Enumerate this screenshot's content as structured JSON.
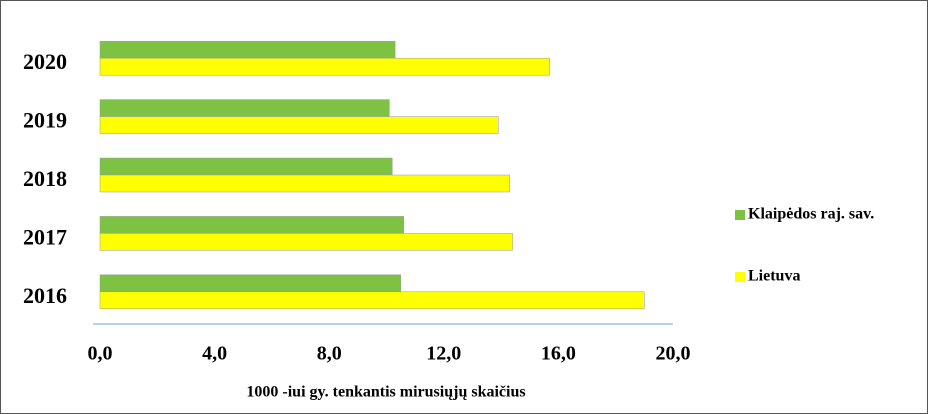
{
  "chart_data": {
    "type": "barh",
    "x_label": "1000 -iui gy. tenkantis mirusiųjų  skaičius",
    "categories": [
      "2016",
      "2017",
      "2018",
      "2019",
      "2020"
    ],
    "series": [
      {
        "name": "Klaipėdos raj. sav.",
        "color": "#7dc242",
        "values": [
          10.5,
          10.6,
          10.2,
          10.1,
          10.3
        ]
      },
      {
        "name": "Lietuva",
        "color": "#ffff00",
        "values": [
          19.0,
          14.4,
          14.3,
          13.9,
          15.7
        ]
      }
    ],
    "xlim": [
      0,
      20
    ],
    "xticks": [
      {
        "value": 0,
        "label": "0,0"
      },
      {
        "value": 4,
        "label": "4,0"
      },
      {
        "value": 8,
        "label": "8,0"
      },
      {
        "value": 12,
        "label": "12,0"
      },
      {
        "value": 16,
        "label": "16,0"
      },
      {
        "value": 20,
        "label": "20,0"
      }
    ],
    "legend": "right"
  }
}
